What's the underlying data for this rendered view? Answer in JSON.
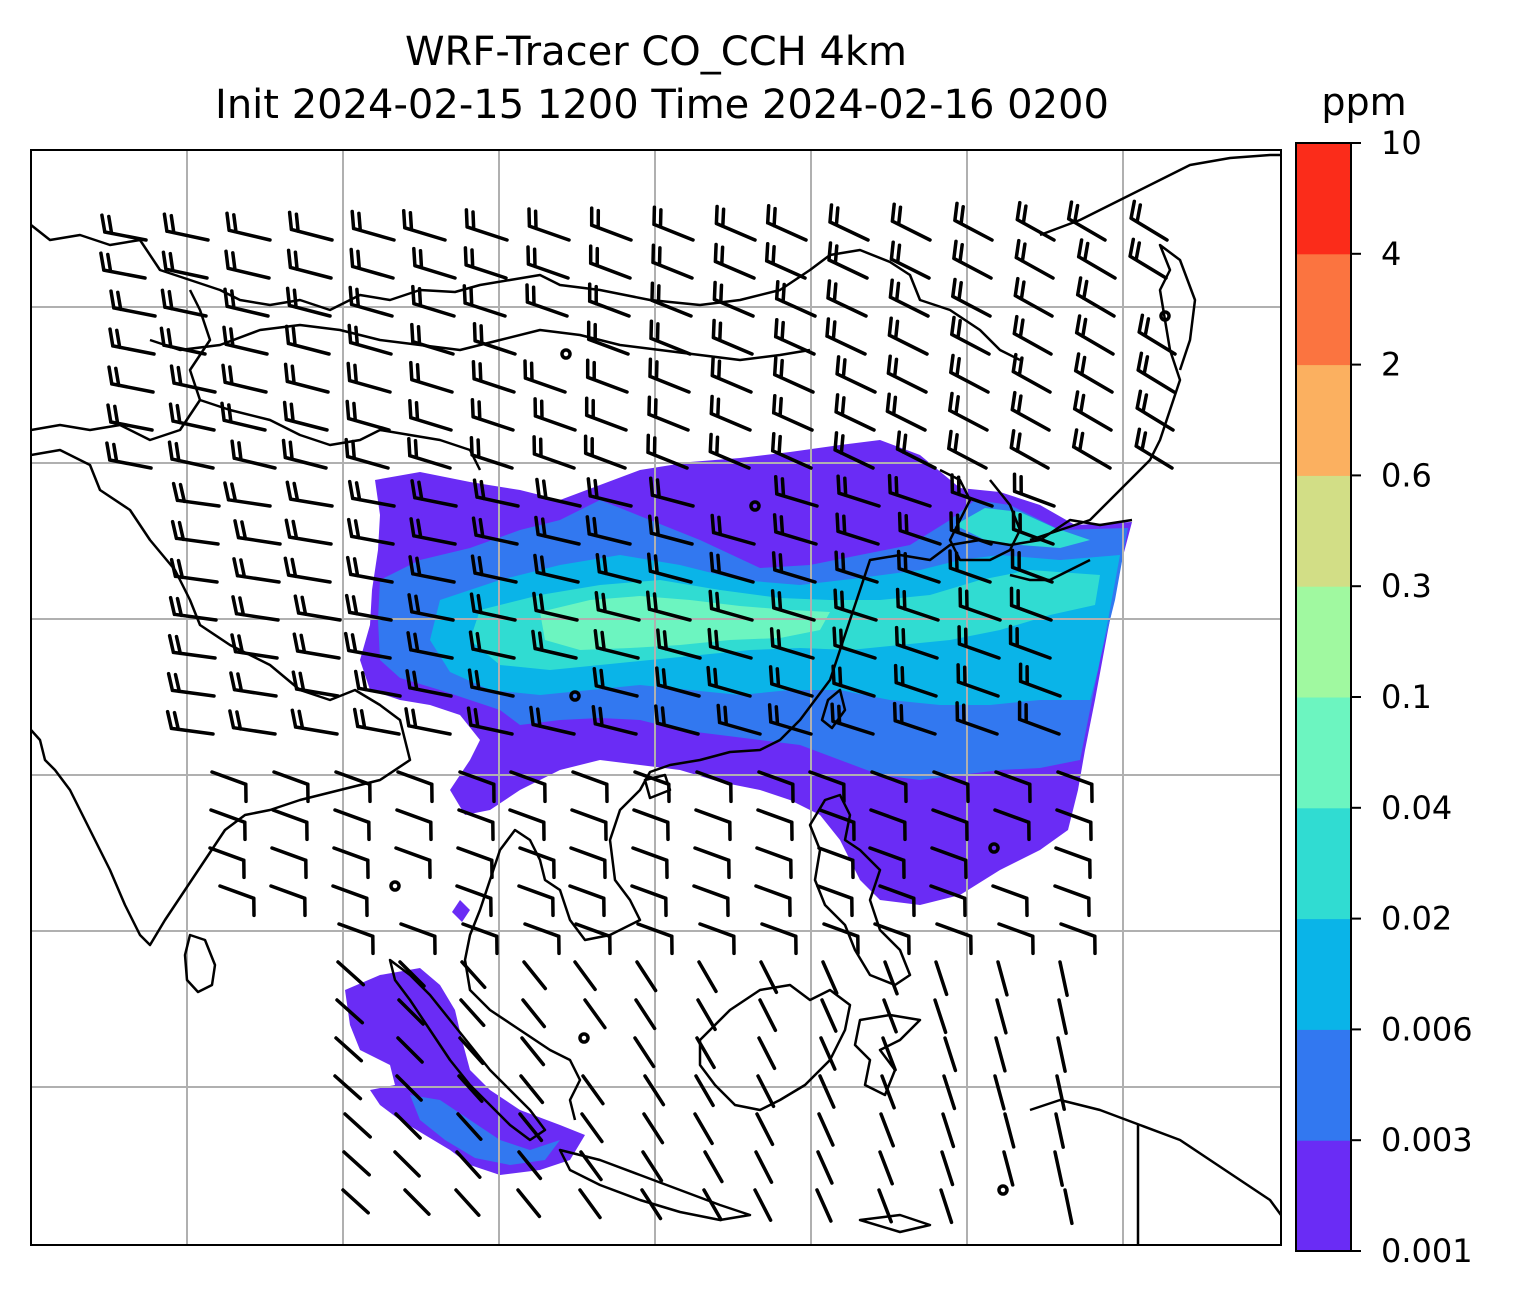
{
  "title": {
    "line1": "WRF-Tracer CO_CCH 4km",
    "line2": "Init 2024-02-15 1200 Time 2024-02-16 0200"
  },
  "colorbar": {
    "unit": "ppm",
    "levels": [
      "0.001",
      "0.003",
      "0.006",
      "0.02",
      "0.04",
      "0.1",
      "0.3",
      "0.6",
      "2",
      "4",
      "10"
    ],
    "colors": [
      "#6a2cf5",
      "#3278f0",
      "#0ab4e8",
      "#30dcd2",
      "#6cf5c0",
      "#a0f9a0",
      "#d2de86",
      "#fbb060",
      "#fb7440",
      "#fb2c1a"
    ]
  },
  "map": {
    "gridlines": "on",
    "gridline_color": "#b0b0b0",
    "coastline_color": "#000000",
    "wind_barb_color": "#000000",
    "tracer_plume": "CO_CCH"
  }
}
